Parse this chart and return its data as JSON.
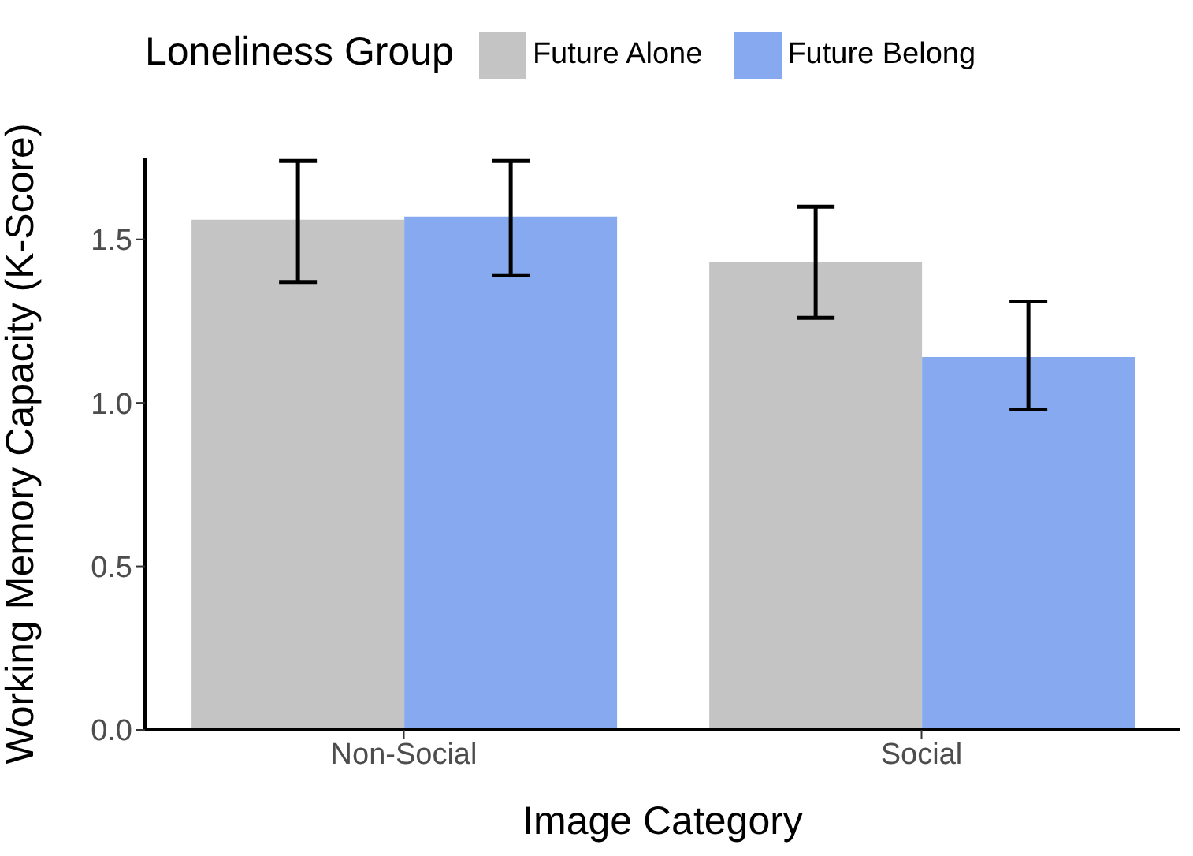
{
  "chart_data": {
    "type": "bar",
    "xlabel": "Image Category",
    "ylabel": "Working Memory Capacity (K-Score)",
    "legend_title": "Loneliness Group",
    "legend": "top",
    "categories": [
      "Non-Social",
      "Social"
    ],
    "ylim": [
      0,
      1.75
    ],
    "yticks": [
      {
        "value": 0,
        "label": "0.0"
      },
      0.5,
      {
        "value": 1,
        "label": "1.0"
      },
      1.5
    ],
    "series": [
      {
        "name": "Future Alone",
        "color": "#c4c4c4",
        "values": [
          1.56,
          1.43
        ],
        "errors": [
          [
            1.37,
            1.74
          ],
          [
            1.26,
            1.6
          ]
        ]
      },
      {
        "name": "Future Belong",
        "color": "#86a9f0",
        "values": [
          1.57,
          1.14
        ],
        "errors": [
          [
            1.39,
            1.74
          ],
          [
            0.98,
            1.31
          ]
        ]
      }
    ]
  }
}
